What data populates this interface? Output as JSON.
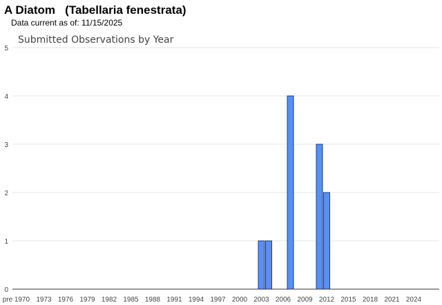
{
  "header": {
    "species_title": "A Diatom   (Tabellaria fenestrata)",
    "data_current": "Data current as of: 11/15/2025"
  },
  "chart_data": {
    "type": "bar",
    "title": "Submitted Observations by Year",
    "xlabel": "",
    "ylabel": "",
    "ylim": [
      0,
      5
    ],
    "yticks": [
      0,
      1,
      2,
      3,
      4,
      5
    ],
    "x_tick_labels": [
      "pre",
      "1970",
      "1973",
      "1976",
      "1979",
      "1982",
      "1985",
      "1988",
      "1991",
      "1994",
      "1997",
      "2000",
      "2003",
      "2006",
      "2009",
      "2012",
      "2015",
      "2018",
      "2021",
      "2024"
    ],
    "x_range": [
      "pre 1970",
      2026
    ],
    "grid": true,
    "legend": "none",
    "color": "#5b8ff0",
    "values": [
      {
        "year": 2003,
        "count": 1
      },
      {
        "year": 2004,
        "count": 1
      },
      {
        "year": 2007,
        "count": 4
      },
      {
        "year": 2011,
        "count": 3
      },
      {
        "year": 2012,
        "count": 2
      }
    ]
  }
}
